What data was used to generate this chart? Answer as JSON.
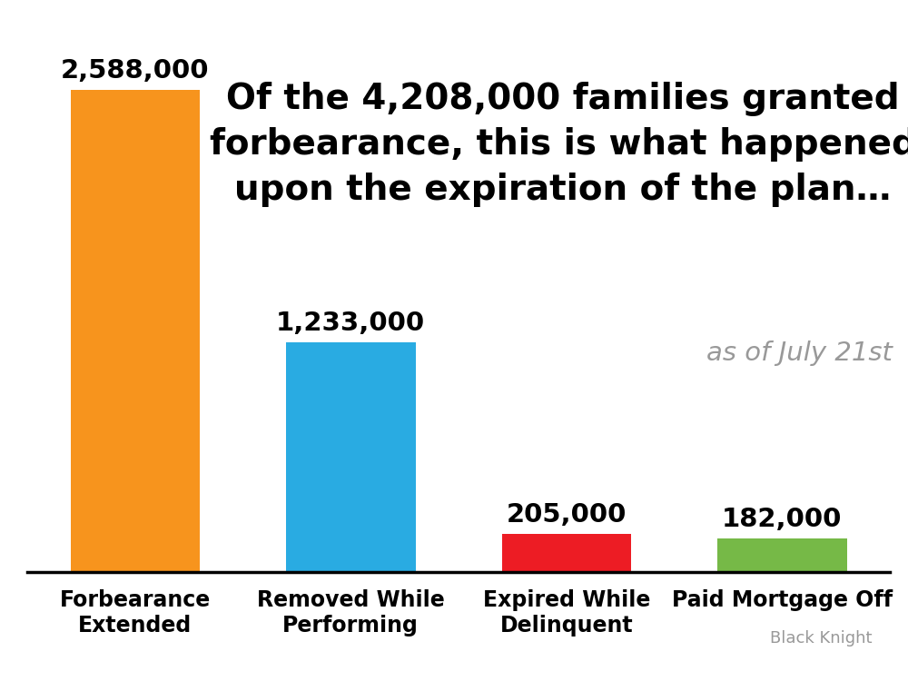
{
  "categories": [
    "Forbearance\nExtended",
    "Removed While\nPerforming",
    "Expired While\nDelinquent",
    "Paid Mortgage Off"
  ],
  "values": [
    2588000,
    1233000,
    205000,
    182000
  ],
  "labels": [
    "2,588,000",
    "1,233,000",
    "205,000",
    "182,000"
  ],
  "bar_colors": [
    "#F7941D",
    "#29ABE2",
    "#ED1C24",
    "#76B947"
  ],
  "title_line1": "Of the 4,208,000 families granted",
  "title_line2": "forbearance, this is what happened",
  "title_line3": "upon the expiration of the plan…",
  "subtitle": "as of July 21st",
  "source": "Black Knight",
  "background_color": "#FFFFFF",
  "title_fontsize": 28,
  "label_fontsize": 21,
  "tick_fontsize": 17,
  "subtitle_fontsize": 21,
  "source_fontsize": 13,
  "ylim": [
    0,
    3000000
  ]
}
